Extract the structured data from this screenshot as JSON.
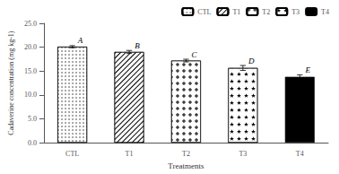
{
  "chart_data": {
    "type": "bar",
    "xlabel": "Treatments",
    "ylabel": "Cadaverine concentration (mg kg-1)",
    "categories": [
      "CTL",
      "T1",
      "T2",
      "T3",
      "T4"
    ],
    "values": [
      20.1,
      19.0,
      17.2,
      15.65,
      13.8
    ],
    "errors": [
      0.22,
      0.32,
      0.28,
      0.52,
      0.42
    ],
    "annotations": [
      "A",
      "B",
      "C",
      "D",
      "E"
    ],
    "colors": [
      "white",
      "white",
      "white",
      "white",
      "black"
    ],
    "ylim": [
      0,
      25
    ],
    "yticks": [
      {
        "value": 0,
        "label": "0.0"
      },
      {
        "value": 5,
        "label": "5.0"
      },
      {
        "value": 10,
        "label": "10.0"
      },
      {
        "value": 15,
        "label": "15.0"
      },
      {
        "value": 20,
        "label": "20.0"
      },
      {
        "value": 25,
        "label": "25.0"
      }
    ],
    "grid": false,
    "legend": "upper right"
  }
}
